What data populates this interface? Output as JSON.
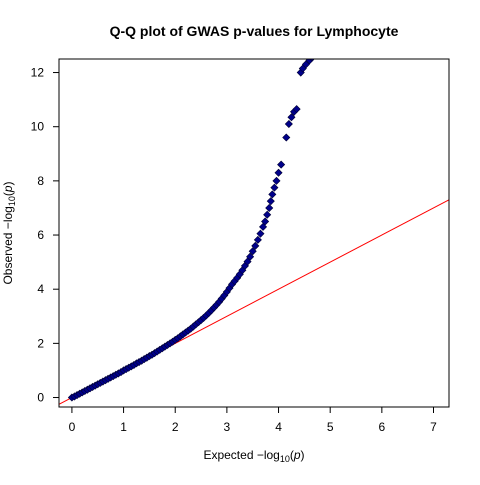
{
  "chart_data": {
    "type": "scatter",
    "title": "Q-Q plot of GWAS p-values for Lymphocyte",
    "xlabel": "Expected  −log",
    "ylabel": "Observed  −log",
    "label_subscript": "10",
    "label_variable": "p",
    "xlim": [
      -0.25,
      7.3
    ],
    "ylim": [
      -0.35,
      12.5
    ],
    "x_ticks": [
      "0",
      "1",
      "2",
      "3",
      "4",
      "5",
      "6",
      "7"
    ],
    "y_ticks": [
      "0",
      "2",
      "4",
      "6",
      "8",
      "10",
      "12"
    ],
    "grid": false,
    "legend": "none",
    "reference_line": {
      "slope": 1,
      "intercept": 0,
      "color": "#ff0000"
    },
    "marker": {
      "shape": "diamond",
      "fill": "#00008b",
      "stroke": "#000033"
    },
    "series": [
      {
        "points": [
          [
            0.0,
            0.0
          ],
          [
            0.05,
            0.04
          ],
          [
            0.1,
            0.09
          ],
          [
            0.15,
            0.14
          ],
          [
            0.2,
            0.19
          ],
          [
            0.25,
            0.24
          ],
          [
            0.3,
            0.29
          ],
          [
            0.35,
            0.34
          ],
          [
            0.4,
            0.39
          ],
          [
            0.45,
            0.44
          ],
          [
            0.5,
            0.49
          ],
          [
            0.55,
            0.54
          ],
          [
            0.6,
            0.59
          ],
          [
            0.65,
            0.64
          ],
          [
            0.7,
            0.69
          ],
          [
            0.75,
            0.74
          ],
          [
            0.8,
            0.79
          ],
          [
            0.85,
            0.84
          ],
          [
            0.9,
            0.89
          ],
          [
            0.95,
            0.94
          ],
          [
            1.0,
            1.0
          ],
          [
            1.05,
            1.05
          ],
          [
            1.1,
            1.1
          ],
          [
            1.15,
            1.15
          ],
          [
            1.2,
            1.2
          ],
          [
            1.25,
            1.26
          ],
          [
            1.3,
            1.31
          ],
          [
            1.35,
            1.36
          ],
          [
            1.4,
            1.42
          ],
          [
            1.45,
            1.47
          ],
          [
            1.5,
            1.53
          ],
          [
            1.55,
            1.58
          ],
          [
            1.6,
            1.64
          ],
          [
            1.65,
            1.7
          ],
          [
            1.7,
            1.76
          ],
          [
            1.75,
            1.82
          ],
          [
            1.8,
            1.88
          ],
          [
            1.85,
            1.94
          ],
          [
            1.9,
            2.0
          ],
          [
            1.95,
            2.06
          ],
          [
            2.0,
            2.13
          ],
          [
            2.05,
            2.19
          ],
          [
            2.1,
            2.26
          ],
          [
            2.15,
            2.33
          ],
          [
            2.2,
            2.4
          ],
          [
            2.25,
            2.47
          ],
          [
            2.3,
            2.54
          ],
          [
            2.35,
            2.62
          ],
          [
            2.4,
            2.7
          ],
          [
            2.45,
            2.78
          ],
          [
            2.5,
            2.86
          ],
          [
            2.55,
            2.94
          ],
          [
            2.6,
            3.03
          ],
          [
            2.65,
            3.12
          ],
          [
            2.7,
            3.22
          ],
          [
            2.75,
            3.32
          ],
          [
            2.8,
            3.42
          ],
          [
            2.85,
            3.53
          ],
          [
            2.9,
            3.65
          ],
          [
            2.95,
            3.77
          ],
          [
            3.0,
            3.9
          ],
          [
            3.05,
            4.04
          ],
          [
            3.1,
            4.18
          ],
          [
            3.15,
            4.3
          ],
          [
            3.2,
            4.42
          ],
          [
            3.25,
            4.55
          ],
          [
            3.3,
            4.7
          ],
          [
            3.35,
            4.86
          ],
          [
            3.4,
            5.02
          ],
          [
            3.45,
            5.2
          ],
          [
            3.5,
            5.4
          ],
          [
            3.55,
            5.6
          ],
          [
            3.6,
            5.82
          ],
          [
            3.65,
            6.05
          ],
          [
            3.7,
            6.3
          ],
          [
            3.74,
            6.5
          ],
          [
            3.78,
            6.75
          ],
          [
            3.82,
            7.0
          ],
          [
            3.85,
            7.25
          ],
          [
            3.88,
            7.5
          ],
          [
            3.92,
            7.75
          ],
          [
            3.96,
            8.0
          ],
          [
            4.0,
            8.3
          ],
          [
            4.05,
            8.6
          ],
          [
            4.15,
            9.6
          ],
          [
            4.2,
            10.1
          ],
          [
            4.25,
            10.35
          ],
          [
            4.3,
            10.55
          ],
          [
            4.35,
            10.65
          ],
          [
            4.43,
            12.0
          ],
          [
            4.47,
            12.15
          ],
          [
            4.53,
            12.3
          ],
          [
            4.6,
            12.45
          ],
          [
            4.65,
            12.55
          ],
          [
            4.75,
            12.65
          ]
        ]
      }
    ]
  }
}
